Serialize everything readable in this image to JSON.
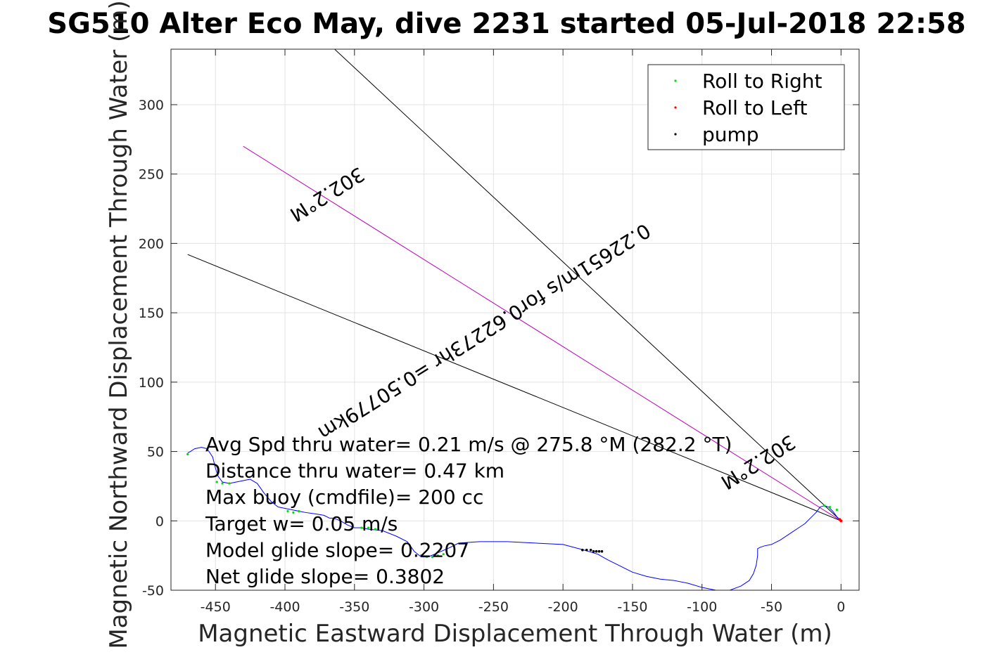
{
  "chart_data": {
    "type": "line",
    "title": "SG510 Alter Eco May, dive 2231 started 05-Jul-2018 22:58",
    "xlabel": "Magnetic Eastward Displacement Through Water (m)",
    "ylabel": "Magnetic Northward Displacement Through Water (m)",
    "xlim": [
      -482,
      13
    ],
    "ylim": [
      -50,
      340
    ],
    "xticks": [
      -450,
      -400,
      -350,
      -300,
      -250,
      -200,
      -150,
      -100,
      -50,
      0
    ],
    "yticks": [
      -50,
      0,
      50,
      100,
      150,
      200,
      250,
      300
    ],
    "grid": true,
    "legend": {
      "placement": "top-right",
      "entries": [
        {
          "label": "Roll to Right",
          "color": "#00dd00"
        },
        {
          "label": "Roll to Left",
          "color": "#ff0000"
        },
        {
          "label": "pump",
          "color": "#000000"
        }
      ]
    },
    "track": {
      "color": "#0000ff",
      "x": [
        0,
        -3,
        -6,
        -9,
        -12,
        -15,
        -18,
        -22,
        -26,
        -32,
        -38,
        -44,
        -50,
        -55,
        -58,
        -60,
        -60,
        -61,
        -63,
        -66,
        -72,
        -80,
        -90,
        -100,
        -110,
        -120,
        -130,
        -140,
        -150,
        -160,
        -168,
        -175,
        -185,
        -200,
        -220,
        -240,
        -260,
        -275,
        -283,
        -290,
        -297,
        -302,
        -307,
        -312,
        -320,
        -330,
        -340,
        -345,
        -350,
        -355,
        -360,
        -365,
        -368,
        -372,
        -378,
        -385,
        -390,
        -395,
        -400,
        -405,
        -410,
        -415,
        -420,
        -425,
        -430,
        -435,
        -440,
        -445,
        -448,
        -450,
        -452,
        -456,
        -460,
        -465,
        -468,
        -470
      ],
      "y": [
        0,
        3,
        7,
        10,
        11,
        10,
        6,
        2,
        -2,
        -6,
        -10,
        -14,
        -17,
        -18,
        -19,
        -20,
        -25,
        -32,
        -38,
        -43,
        -47,
        -50,
        -50,
        -48,
        -45,
        -43,
        -42,
        -40,
        -37,
        -32,
        -28,
        -24,
        -21,
        -17,
        -16,
        -15,
        -15,
        -16,
        -20,
        -23,
        -26,
        -26,
        -22,
        -15,
        -11,
        -7,
        -6,
        -5,
        -5,
        -3,
        0,
        2,
        2,
        4,
        5,
        6,
        7,
        8,
        9,
        10,
        14,
        20,
        27,
        30,
        29,
        28,
        27,
        28,
        32,
        38,
        46,
        52,
        53,
        52,
        50,
        49
      ]
    },
    "roll_right_points": {
      "x": [
        -470,
        -3,
        -8,
        -12,
        -286,
        -290,
        -294,
        -298,
        -302,
        -335,
        -340,
        -345,
        -390,
        -394,
        -398,
        -440,
        -445,
        -449
      ],
      "y": [
        48,
        8,
        10,
        11,
        -24,
        -25,
        -26,
        -26,
        -25,
        -6,
        -5,
        -5,
        7,
        6,
        7,
        27,
        27,
        28
      ]
    },
    "roll_left_points": {
      "x": [
        0,
        -1
      ],
      "y": [
        0,
        1
      ]
    },
    "pump_points": {
      "x": [
        -186,
        -183,
        -180,
        -178,
        -176,
        -174,
        -172
      ],
      "y": [
        -21,
        -21,
        -21,
        -22,
        -22,
        -22,
        -22
      ]
    },
    "reference_lines": [
      {
        "color": "#000000",
        "x": [
          0,
          -375
        ],
        "y": [
          0,
          350
        ]
      },
      {
        "color": "#000000",
        "x": [
          0,
          -470
        ],
        "y": [
          0,
          192
        ]
      },
      {
        "color": "#bb00bb",
        "x": [
          0,
          -430
        ],
        "y": [
          0,
          270
        ]
      }
    ],
    "rotated_labels": [
      {
        "text": "302.2°M",
        "x": -370,
        "y": 236
      },
      {
        "text": "0.22651m/s for0.62273hr =0.50779km",
        "x": -257,
        "y": 137
      },
      {
        "text": "302.2°M",
        "x": -60,
        "y": 43
      }
    ],
    "annotations": [
      "Avg Spd thru water=  0.21 m/s @ 275.8 °M (282.2 °T)",
      "Distance thru water=  0.47 km",
      "Max buoy (cmdfile)= 200 cc",
      "Target w= 0.05 m/s",
      "Model glide slope= 0.2207",
      "Net glide slope= 0.3802"
    ]
  }
}
